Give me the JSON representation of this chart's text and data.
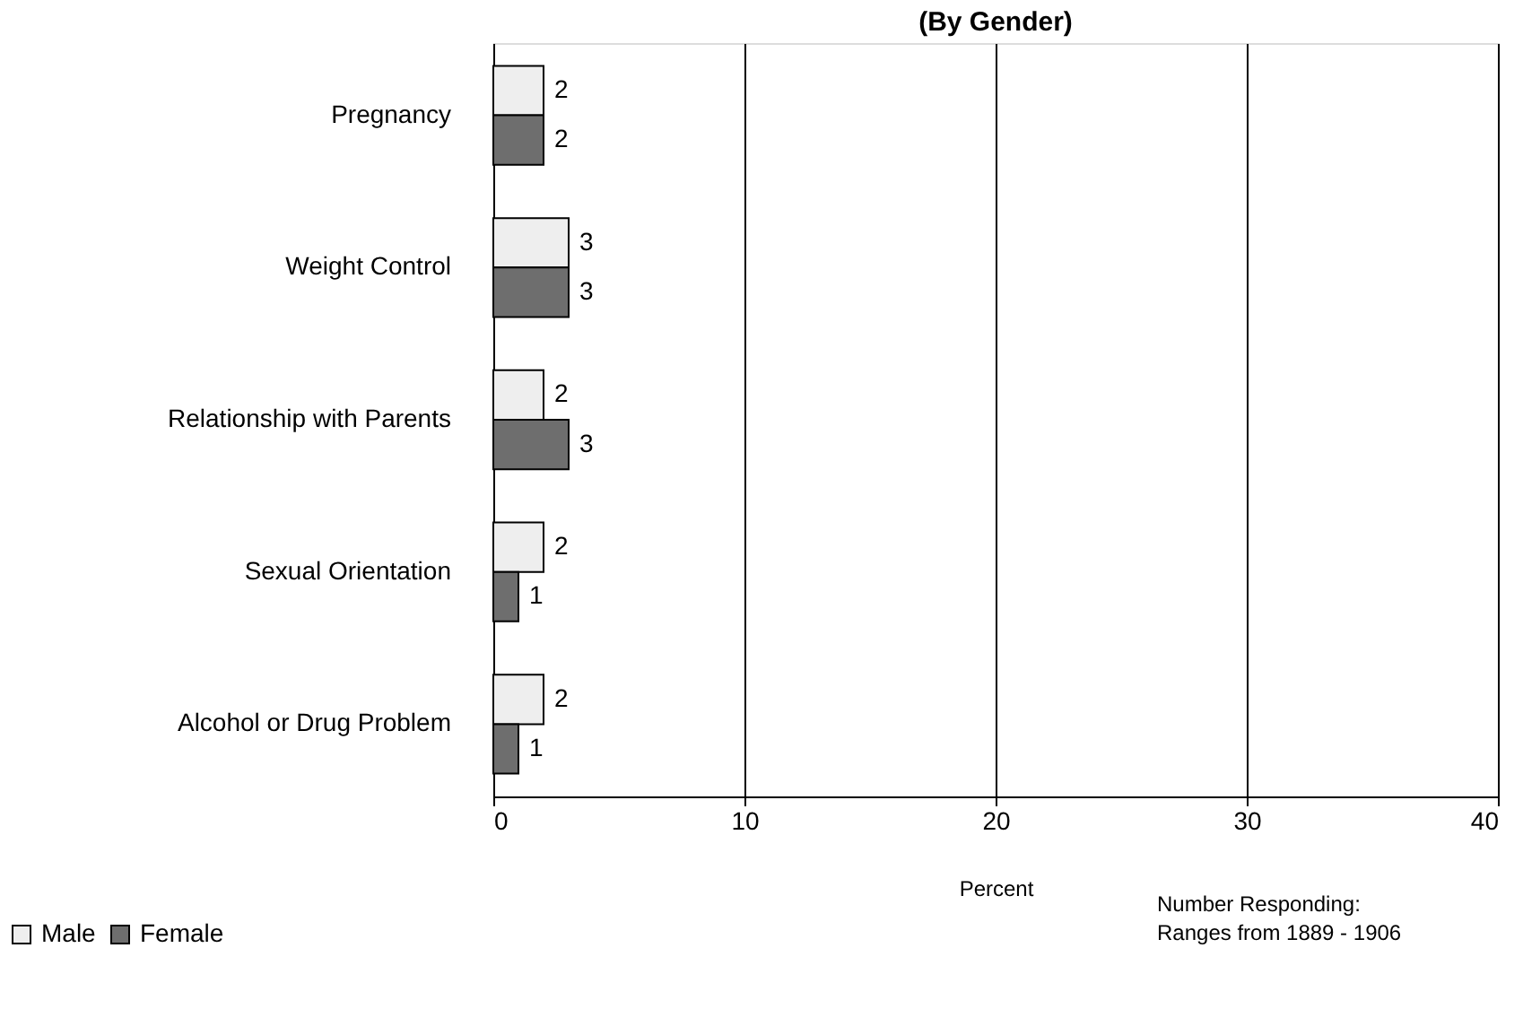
{
  "chart_data": {
    "type": "bar",
    "orientation": "horizontal",
    "title": "(By Gender)",
    "xlabel": "Percent",
    "categories": [
      "Pregnancy",
      "Weight Control",
      "Relationship with Parents",
      "Sexual Orientation",
      "Alcohol or Drug Problem"
    ],
    "series": [
      {
        "name": "Male",
        "color": "#eeeeee",
        "values": [
          2,
          3,
          2,
          2,
          2
        ]
      },
      {
        "name": "Female",
        "color": "#6e6e6e",
        "values": [
          2,
          3,
          3,
          1,
          1
        ]
      }
    ],
    "xlim": [
      0,
      40
    ],
    "xticks": [
      0,
      10,
      20,
      30,
      40
    ],
    "grid": "x",
    "data_labels": true,
    "legend": "bottom left",
    "annotations": [
      "Number Responding:",
      "Ranges from 1889 - 1906"
    ]
  }
}
